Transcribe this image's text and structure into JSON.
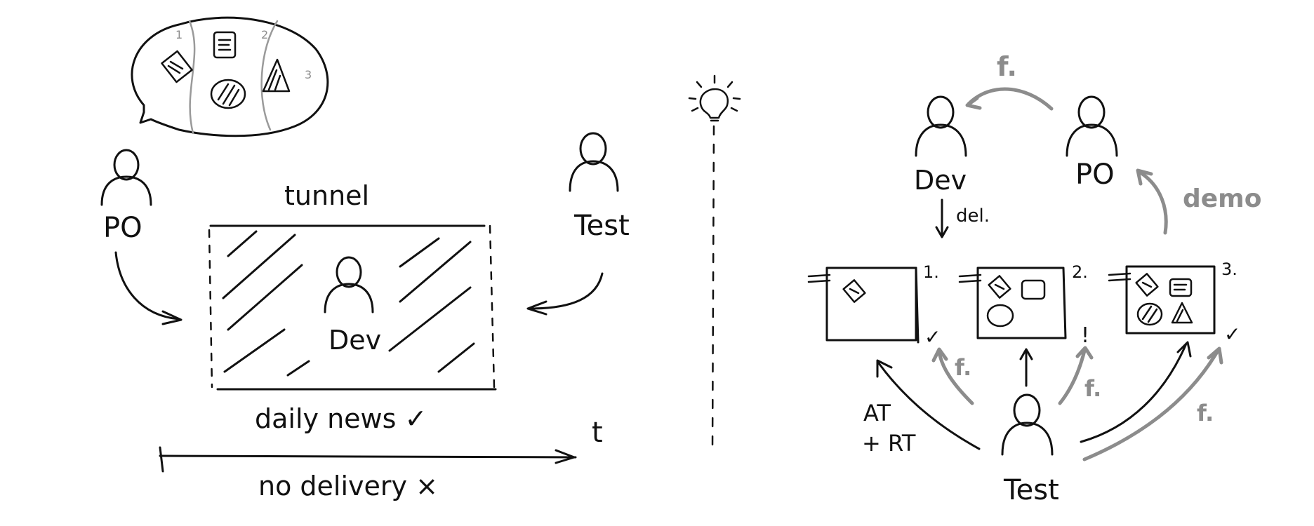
{
  "left": {
    "po_label": "PO",
    "tunnel_label": "tunnel",
    "dev_label": "Dev",
    "test_label": "Test",
    "daily_news_label": "daily news ✓",
    "time_label": "t",
    "no_delivery_label": "no delivery ×",
    "bubble_numbers": [
      "1",
      "2",
      "3"
    ]
  },
  "right": {
    "dev_label": "Dev",
    "po_label": "PO",
    "test_label": "Test",
    "top_feedback_label": "f.",
    "demo_label": "demo",
    "delivery_label": "del.",
    "at_label": "AT",
    "rt_label": "+ RT",
    "increment_numbers": [
      "1.",
      "2.",
      "3."
    ],
    "increment_marks": [
      "✓",
      "!",
      "✓"
    ],
    "feedback_labels": [
      "f.",
      "f.",
      "f."
    ]
  },
  "colors": {
    "ink": "#111111",
    "feedback": "#8c8c8c"
  }
}
